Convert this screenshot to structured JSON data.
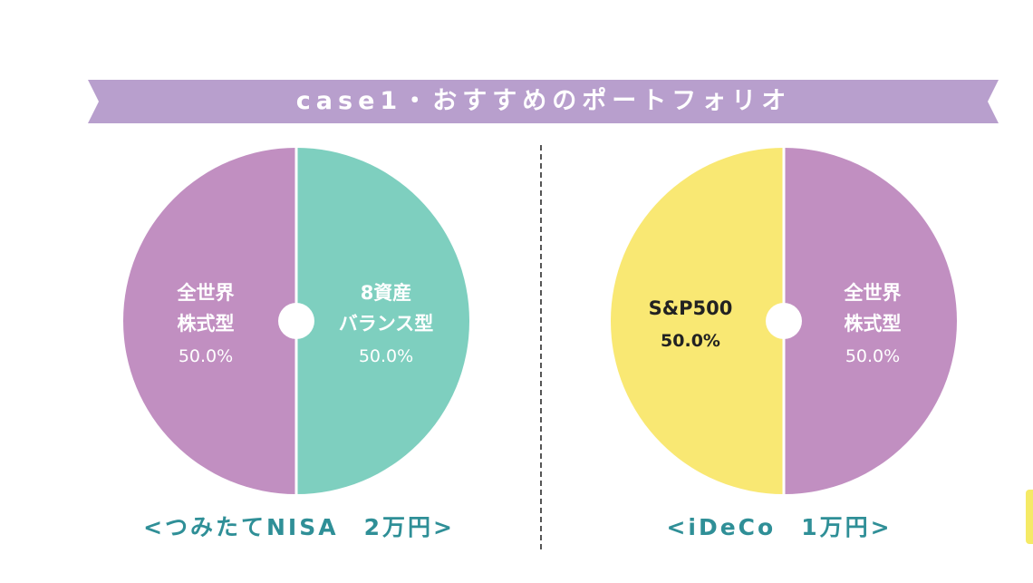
{
  "banner": {
    "title": "case1・おすすめのポートフォリオ",
    "color": "#b89fcd"
  },
  "chart_data": [
    {
      "type": "pie",
      "title": "",
      "caption": "<つみたてNISA　2万円>",
      "slices": [
        {
          "label_line1": "全世界",
          "label_line2": "株式型",
          "percent_label": "50.0%",
          "value": 50.0,
          "color": "#c18fc1",
          "text_color": "#ffffff"
        },
        {
          "label_line1": "8資産",
          "label_line2": "バランス型",
          "percent_label": "50.0%",
          "value": 50.0,
          "color": "#7ecfbf",
          "text_color": "#ffffff"
        }
      ]
    },
    {
      "type": "pie",
      "title": "",
      "caption": "<iDeCo　1万円>",
      "slices": [
        {
          "label_line1": "S&P500",
          "label_line2": "",
          "percent_label": "50.0%",
          "value": 50.0,
          "color": "#f9e873",
          "text_color": "#222222"
        },
        {
          "label_line1": "全世界",
          "label_line2": "株式型",
          "percent_label": "50.0%",
          "value": 50.0,
          "color": "#c18fc1",
          "text_color": "#ffffff"
        }
      ]
    }
  ]
}
